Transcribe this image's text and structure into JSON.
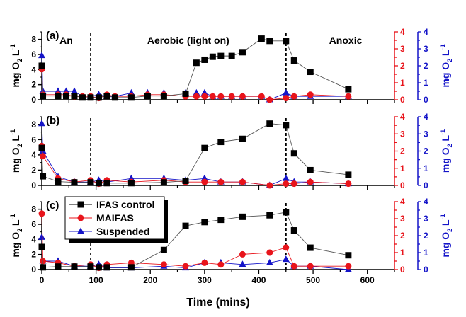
{
  "chart_data": {
    "type": "line",
    "xlabel": "Time (mins)",
    "xlim": [
      0,
      650
    ],
    "xticks": [
      0,
      100,
      200,
      300,
      400,
      500,
      600
    ],
    "x_minor_step": 50,
    "left_ylabel": "mg O2 L-1",
    "right_ylabel": "mg O2 L-1",
    "left_ylim": [
      0,
      9
    ],
    "left_yticks": [
      0,
      2,
      4,
      6,
      8
    ],
    "right_ylim": [
      0,
      4
    ],
    "right_yticks": [
      0,
      1,
      2,
      3,
      4
    ],
    "colors": {
      "IFAS control": "#000000",
      "MAIFAS": "#e8141b",
      "Suspended": "#1414c8",
      "red_axis": "#e8141b",
      "blue_axis": "#1414c8"
    },
    "phase_lines_x": [
      90,
      450
    ],
    "phase_labels": [
      {
        "text": "An",
        "x": 45
      },
      {
        "text": "Aerobic (light on)",
        "x": 270
      },
      {
        "text": "Anoxic",
        "x": 560
      }
    ],
    "legend": {
      "placement": "top-left of panel (c)",
      "entries": [
        "IFAS control",
        "MAIFAS",
        "Suspended"
      ]
    },
    "panels": [
      {
        "label": "(a)",
        "x": [
          0,
          2,
          30,
          45,
          60,
          75,
          90,
          105,
          120,
          135,
          165,
          195,
          225,
          265,
          285,
          300,
          315,
          330,
          350,
          370,
          405,
          420,
          450,
          465,
          495,
          565
        ],
        "series": [
          {
            "name": "IFAS control",
            "axis": "left",
            "values": [
              4.5,
              0.5,
              0.5,
              0.5,
              0.5,
              0.3,
              0.3,
              0.3,
              0.5,
              0.3,
              0.3,
              0.5,
              0.5,
              0.8,
              4.9,
              5.3,
              5.7,
              5.8,
              5.8,
              6.3,
              8.1,
              7.8,
              7.8,
              5.2,
              3.7,
              1.4
            ]
          },
          {
            "name": "MAIFAS",
            "axis": "right",
            "values": [
              1.8,
              0.3,
              0.3,
              0.3,
              0.2,
              0.2,
              0.2,
              0.1,
              0.3,
              0.2,
              0.2,
              0.3,
              0.3,
              0.2,
              0.2,
              0.2,
              0.2,
              0.2,
              0.2,
              0.2,
              0.2,
              0.0,
              0.1,
              0.2,
              0.3,
              0.2
            ]
          },
          {
            "name": "Suspended",
            "axis": "right",
            "values": [
              2.6,
              0.5,
              0.5,
              0.5,
              0.5,
              0.2,
              0.2,
              0.3,
              0.2,
              0.2,
              0.4,
              0.4,
              0.4,
              0.4,
              0.4,
              0.4,
              0.2,
              0.2,
              0.2,
              0.2,
              0.2,
              0.0,
              0.4,
              0.2,
              0.2,
              0.2
            ]
          }
        ]
      },
      {
        "label": "(b)",
        "x": [
          0,
          2,
          30,
          60,
          90,
          105,
          120,
          165,
          225,
          265,
          300,
          330,
          370,
          420,
          450,
          465,
          495,
          565
        ],
        "series": [
          {
            "name": "IFAS control",
            "axis": "left",
            "values": [
              4.9,
              1.2,
              0.5,
              0.4,
              0.4,
              0.3,
              0.3,
              0.3,
              0.4,
              0.6,
              4.9,
              5.7,
              6.1,
              8.1,
              7.9,
              4.2,
              2.0,
              1.4
            ]
          },
          {
            "name": "MAIFAS",
            "axis": "right",
            "values": [
              2.3,
              1.7,
              0.4,
              0.2,
              0.3,
              0.1,
              0.3,
              0.2,
              0.3,
              0.2,
              0.2,
              0.2,
              0.2,
              0.0,
              0.1,
              0.1,
              0.2,
              0.1
            ]
          },
          {
            "name": "Suspended",
            "axis": "right",
            "values": [
              3.6,
              2.0,
              0.5,
              0.2,
              0.2,
              0.3,
              0.2,
              0.4,
              0.4,
              0.3,
              0.4,
              0.2,
              0.2,
              0.0,
              0.4,
              0.2,
              0.2,
              0.1
            ]
          }
        ]
      },
      {
        "label": "(c)",
        "x": [
          0,
          2,
          30,
          60,
          90,
          105,
          120,
          165,
          225,
          265,
          300,
          330,
          370,
          420,
          450,
          465,
          495,
          565
        ],
        "series": [
          {
            "name": "IFAS control",
            "axis": "left",
            "values": [
              3.0,
              0.3,
              0.4,
              0.4,
              0.4,
              0.3,
              0.3,
              0.3,
              2.6,
              5.8,
              6.3,
              6.6,
              7.0,
              7.2,
              7.6,
              5.2,
              2.9,
              1.9
            ]
          },
          {
            "name": "MAIFAS",
            "axis": "right",
            "values": [
              3.3,
              0.5,
              0.4,
              0.2,
              0.3,
              0.1,
              0.3,
              0.4,
              0.3,
              0.2,
              0.4,
              0.3,
              0.9,
              1.0,
              1.3,
              0.2,
              0.2,
              0.2
            ]
          },
          {
            "name": "Suspended",
            "axis": "right",
            "values": [
              1.9,
              0.5,
              0.5,
              0.2,
              0.2,
              0.3,
              0.1,
              0.1,
              0.2,
              0.1,
              0.4,
              0.4,
              0.3,
              0.4,
              0.6,
              0.2,
              0.2,
              0.0
            ]
          }
        ]
      }
    ]
  }
}
